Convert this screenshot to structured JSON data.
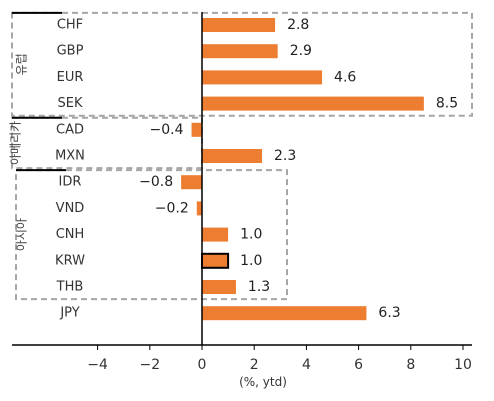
{
  "chart_data": {
    "type": "bar",
    "orientation": "horizontal",
    "categories": [
      "CHF",
      "GBP",
      "EUR",
      "SEK",
      "CAD",
      "MXN",
      "IDR",
      "VND",
      "CNH",
      "KRW",
      "THB",
      "JPY"
    ],
    "values": [
      2.8,
      2.9,
      4.6,
      8.5,
      -0.4,
      2.3,
      -0.8,
      -0.2,
      1.0,
      1.0,
      1.3,
      6.3
    ],
    "value_labels": [
      "2.8",
      "2.9",
      "4.6",
      "8.5",
      "-0.4",
      "2.3",
      "-0.8",
      "-0.2",
      "1.0",
      "1.0",
      "1.3",
      "6.3"
    ],
    "highlight": "KRW",
    "xlabel": "(%, ytd)",
    "xlim": [
      -6,
      10
    ],
    "xticks": [
      -4,
      -2,
      0,
      2,
      4,
      6,
      8,
      10
    ],
    "groups": [
      {
        "label": "유럽",
        "members": [
          "CHF",
          "GBP",
          "EUR",
          "SEK"
        ]
      },
      {
        "label": "아메리카",
        "members": [
          "CAD",
          "MXN"
        ]
      },
      {
        "label": "아시아",
        "members": [
          "IDR",
          "VND",
          "CNH",
          "KRW",
          "THB"
        ]
      }
    ],
    "colors": {
      "bar": "#ED7D31",
      "highlight_stroke": "#000000",
      "group_border": "#A6A6A6",
      "axis": "#000000"
    }
  }
}
